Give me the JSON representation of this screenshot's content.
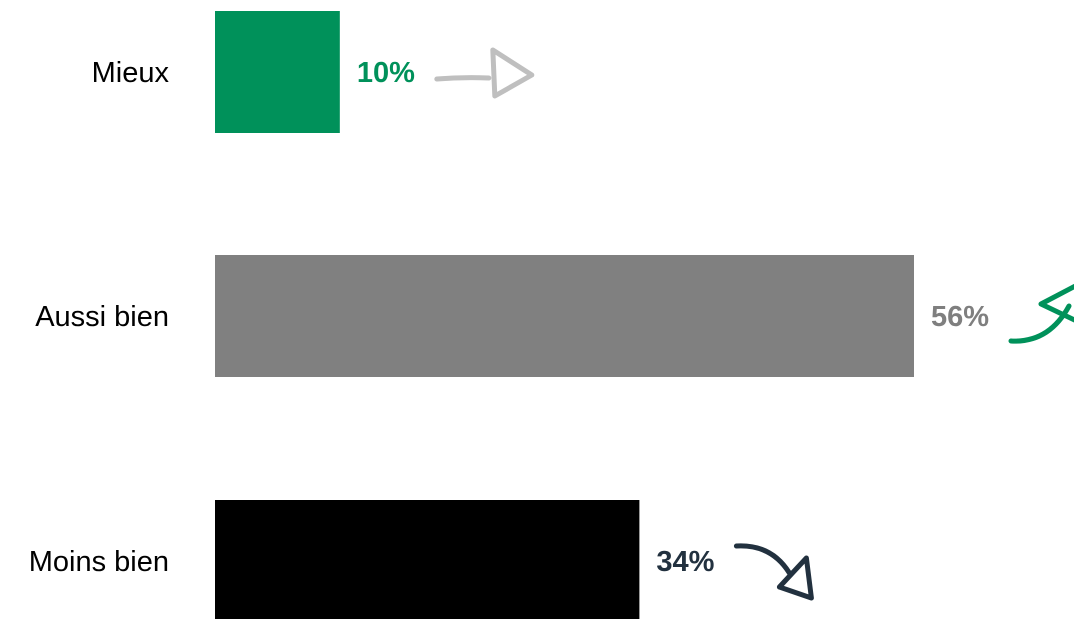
{
  "chart_data": {
    "type": "bar",
    "orientation": "horizontal",
    "categories": [
      "Mieux",
      "Aussi bien",
      "Moins bien"
    ],
    "values": [
      10,
      56,
      34
    ],
    "data_labels": [
      "10%",
      "56%",
      "34%"
    ],
    "unit": "%",
    "bar_colors": [
      "#00915A",
      "#808080",
      "#000000"
    ],
    "label_colors": [
      "#00915A",
      "#7F7F7F",
      "#22313F"
    ],
    "trend_arrows": [
      {
        "icon": "arrow-right-icon",
        "color": "#BFBFBF"
      },
      {
        "icon": "arrow-up-right-icon",
        "color": "#00915A"
      },
      {
        "icon": "arrow-down-right-icon",
        "color": "#22313F"
      }
    ],
    "xlim": [
      0,
      56
    ],
    "title": "",
    "xlabel": "",
    "ylabel": "",
    "grid": false,
    "legend": "none"
  }
}
